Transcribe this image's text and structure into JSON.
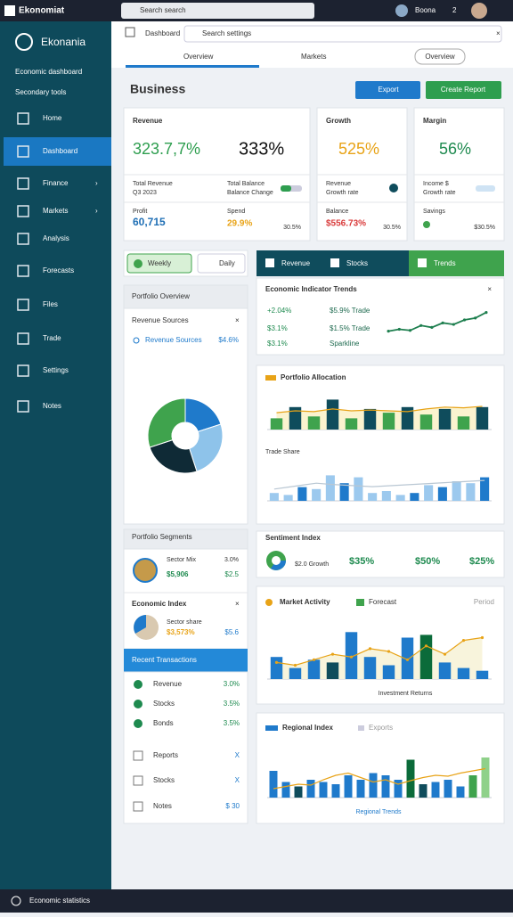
{
  "topbar": {
    "app": "Ekonomiat",
    "search": "Search search",
    "user": "Boona",
    "badge": "2"
  },
  "sidebar": {
    "brand": "Ekonania",
    "subtitle": "Economic dashboard",
    "section": "Secondary tools",
    "nav": [
      "Home",
      "Dashboard",
      "Finance",
      "Markets",
      "Analysis",
      "Forecasts",
      "Files",
      "Trade",
      "Settings",
      "Notes"
    ],
    "footer": "Economic statistics"
  },
  "header": {
    "breadcrumb": "Dashboard",
    "search": "Search settings",
    "tabs": [
      "Overview",
      "Markets"
    ],
    "button": "Overview"
  },
  "page": {
    "title": "Business",
    "actions": [
      "Export",
      "Create Report"
    ]
  },
  "kpis": [
    {
      "title": "Revenue",
      "value": "323.7,7%",
      "value2": "333%",
      "labels": [
        "Total Revenue",
        "Total Balance",
        "Q3 2023",
        "Balance Change"
      ],
      "items": [
        {
          "label": "Profit",
          "value": "60,715"
        },
        {
          "label": "Spend",
          "value": "29.9%"
        }
      ],
      "note": "30.5%"
    },
    {
      "title": "Growth",
      "value": "525%",
      "labels": [
        "Revenue",
        "Growth rate"
      ],
      "items": [
        {
          "label": "Balance",
          "value": "$556.73%"
        }
      ],
      "note": "30.5%"
    },
    {
      "title": "Margin",
      "value": "56%",
      "labels": [
        "Income $",
        "Growth rate"
      ],
      "items": [
        {
          "label": "Savings",
          "value": ""
        }
      ],
      "note": "$30.5%"
    }
  ],
  "left": {
    "tabs": [
      "Weekly",
      "Daily"
    ],
    "panel_title": "Portfolio Overview",
    "pie": {
      "type": "pie",
      "title": "Revenue Sources",
      "legend": "Revenue Sources",
      "legend_value": "$4.6%",
      "values": [
        20,
        25,
        25,
        30
      ],
      "colors": [
        "#1f7acb",
        "#8ec3ea",
        "#0f2a36",
        "#3fa34d"
      ]
    },
    "segments_title": "Portfolio Segments",
    "segments": [
      {
        "label": "Sector Mix",
        "value": "$5,906",
        "note": "$2.5",
        "extra": "3.0%"
      },
      {
        "label": "Economic Index",
        "value": "$3,573%",
        "note": "$5.6",
        "extra": "Sector share"
      }
    ],
    "list_title": "Recent Transactions",
    "list": [
      {
        "label": "Revenue",
        "value": "3.0%"
      },
      {
        "label": "Stocks",
        "value": "3.5%"
      },
      {
        "label": "Bonds",
        "value": "3.5%"
      },
      {
        "label": "Reports",
        "value": "X"
      },
      {
        "label": "Stocks",
        "value": "X"
      },
      {
        "label": "Notes",
        "value": "$ 30"
      }
    ]
  },
  "right": {
    "tabs": [
      "Revenue",
      "Stocks",
      "Trends"
    ],
    "indicators": {
      "title": "Economic Indicator Trends",
      "rows": [
        [
          "+2.04%",
          "$5.9% Trade"
        ],
        [
          "$3.1%",
          "$1.5% Trade"
        ],
        [
          "$3.1%",
          "Sparkline"
        ]
      ]
    },
    "sentiment": {
      "title": "Sentiment Index",
      "values": [
        "$35%",
        "$50%",
        "$25%"
      ],
      "label": "$2.0 Growth"
    }
  },
  "charts": [
    {
      "type": "line",
      "title": "Sparkline",
      "ylim": [
        0,
        100
      ],
      "line": {
        "values": [
          20,
          25,
          22,
          35,
          30,
          42,
          38,
          50,
          55,
          70
        ],
        "color": "#1e7f4f"
      }
    },
    {
      "type": "bar",
      "title": "Portfolio Allocation",
      "ylim": [
        0,
        100
      ],
      "bars": {
        "values": [
          30,
          60,
          35,
          80,
          30,
          55,
          45,
          60,
          40,
          55,
          35,
          60
        ],
        "colors": [
          "#3fa34d",
          "#0f4c5c",
          "#3fa34d",
          "#0f4c5c",
          "#3fa34d",
          "#0f4c5c",
          "#3fa34d",
          "#0f4c5c",
          "#3fa34d",
          "#0f4c5c",
          "#3fa34d",
          "#0f4c5c"
        ]
      },
      "line": {
        "values": [
          45,
          50,
          48,
          55,
          50,
          52,
          50,
          48,
          55,
          60,
          58,
          62
        ],
        "color": "#e8a317",
        "area": "#fbf3cf"
      }
    },
    {
      "type": "bar",
      "title": "Trade Share",
      "ylim": [
        0,
        100
      ],
      "bars": {
        "values": [
          20,
          15,
          35,
          30,
          65,
          45,
          60,
          20,
          25,
          15,
          20,
          40,
          35,
          50,
          45,
          60
        ],
        "colors": [
          "#9cc9ee",
          "#9cc9ee",
          "#1f7acb",
          "#9cc9ee",
          "#9cc9ee",
          "#1f7acb",
          "#9cc9ee",
          "#9cc9ee",
          "#9cc9ee",
          "#9cc9ee",
          "#1f7acb",
          "#9cc9ee",
          "#1f7acb",
          "#9cc9ee",
          "#9cc9ee",
          "#1f7acb"
        ]
      },
      "line": {
        "values": [
          30,
          35,
          40,
          45,
          42,
          40,
          38,
          36,
          38,
          40,
          42,
          44,
          46,
          48,
          50,
          52
        ],
        "color": "#b9c7d3"
      }
    },
    {
      "type": "bar",
      "title": "Market Activity",
      "legend": "Forecast",
      "legend2": "Period",
      "footer": "Investment Returns",
      "ylim": [
        0,
        100
      ],
      "bars": {
        "values": [
          40,
          20,
          35,
          30,
          85,
          40,
          25,
          75,
          80,
          30,
          20,
          15
        ],
        "colors": [
          "#1f7acb",
          "#1f7acb",
          "#1f7acb",
          "#0f4c5c",
          "#1f7acb",
          "#1f7acb",
          "#1f7acb",
          "#1f7acb",
          "#0b6b3a",
          "#1f7acb",
          "#1f7acb",
          "#1f7acb"
        ]
      },
      "line": {
        "values": [
          30,
          25,
          35,
          45,
          40,
          55,
          50,
          35,
          60,
          45,
          70,
          75
        ],
        "color": "#e8a317",
        "area": "#f8f4dc"
      }
    },
    {
      "type": "bar",
      "title": "Regional Index",
      "legend": "Exports",
      "footer": "Regional Trends",
      "ylim": [
        0,
        100
      ],
      "bars": {
        "values": [
          60,
          35,
          25,
          40,
          35,
          30,
          50,
          40,
          55,
          50,
          40,
          85,
          30,
          35,
          40,
          25,
          50,
          90
        ],
        "colors": [
          "#1f7acb",
          "#1f7acb",
          "#0f4c5c",
          "#1f7acb",
          "#1f7acb",
          "#1f7acb",
          "#1f7acb",
          "#1f7acb",
          "#1f7acb",
          "#1f7acb",
          "#1f7acb",
          "#0b6b3a",
          "#0f4c5c",
          "#1f7acb",
          "#1f7acb",
          "#1f7acb",
          "#3fa34d",
          "#8fd18a"
        ]
      },
      "line": {
        "values": [
          20,
          25,
          30,
          28,
          40,
          50,
          55,
          45,
          35,
          40,
          30,
          38,
          45,
          50,
          48,
          55,
          60,
          65
        ],
        "color": "#e8a317"
      }
    }
  ]
}
